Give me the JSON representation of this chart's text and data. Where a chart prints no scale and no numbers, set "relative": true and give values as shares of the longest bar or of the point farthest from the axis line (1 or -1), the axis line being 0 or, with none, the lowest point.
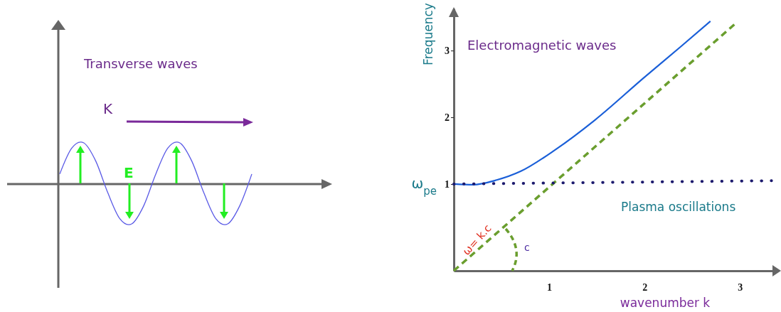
{
  "chart_data": [
    {
      "type": "line",
      "relative": true,
      "categories": [
        null,
        null,
        null,
        null,
        null,
        null,
        null,
        null,
        null,
        null,
        null,
        null,
        null,
        null,
        null,
        null,
        null
      ],
      "series": [
        {
          "color": "#5a5ae6",
          "values": [
            0.23,
            0.87,
            1,
            0.55,
            -0.23,
            -0.87,
            -1,
            -0.55,
            0.23,
            0.87,
            1,
            0.55,
            -0.23,
            -0.87,
            -1,
            -0.55,
            0.23
          ]
        }
      ],
      "annotations": [
        "Transverse waves",
        "K",
        "E"
      ]
    },
    {
      "type": "line",
      "xlabel": "wavenumber k",
      "ylabel": "Frequency",
      "xlim": [
        0,
        3.37
      ],
      "ylim": [
        -0.3,
        3.63
      ],
      "xticks": [
        1,
        2,
        3
      ],
      "yticks": [
        1,
        2,
        3
      ],
      "grid": false,
      "series": [
        {
          "color": "#1a5fd8",
          "line_style": "solid",
          "x": [
            0,
            0.2,
            0.45,
            0.7,
            1.07,
            1.48,
            1.99,
            2.38,
            2.69
          ],
          "values": [
            1,
            0.99,
            1.06,
            1.19,
            1.52,
            1.96,
            2.59,
            3.06,
            3.44
          ]
        },
        {
          "color": "#6a9e2e",
          "line_style": "dashed",
          "x": [
            0,
            2.94
          ],
          "values": [
            -0.3,
            3.39
          ]
        },
        {
          "color": "#1c1a6e",
          "line_style": "dotted",
          "x": [
            0,
            3.33
          ],
          "values": [
            1,
            1.05
          ]
        }
      ],
      "annotations": [
        "Electromagnetic waves",
        "Plasma oscillations",
        "ω= k.c",
        "c",
        {
          "text": "ω$_{pe}$",
          "x": 0,
          "y": 1
        }
      ]
    }
  ]
}
